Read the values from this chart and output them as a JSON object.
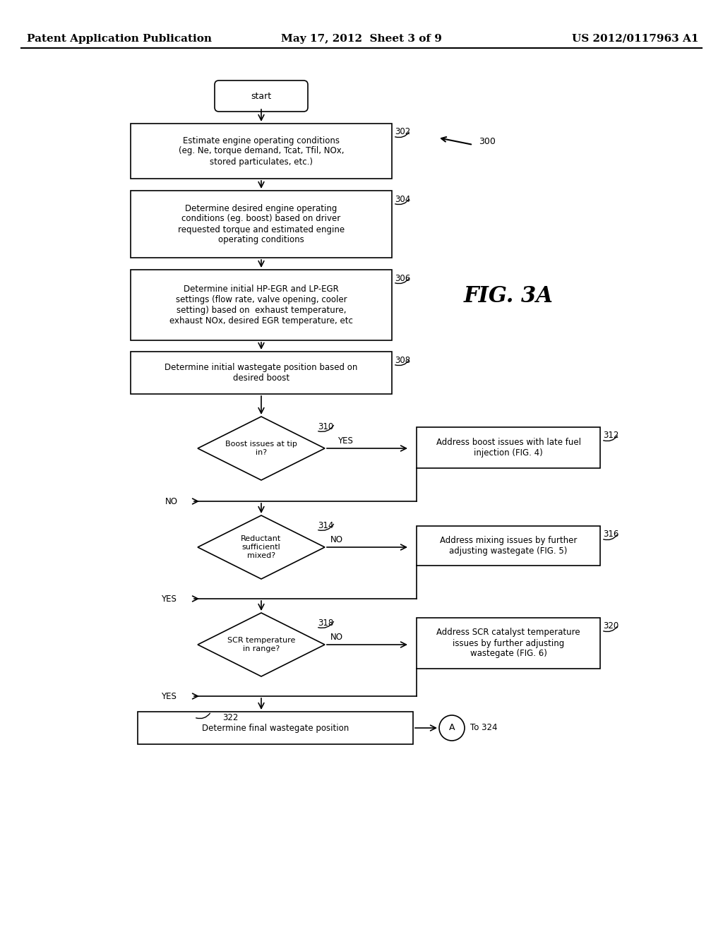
{
  "header_left": "Patent Application Publication",
  "header_mid": "May 17, 2012  Sheet 3 of 9",
  "header_right": "US 2012/0117963 A1",
  "fig_label": "FIG. 3A",
  "background_color": "#ffffff",
  "line_color": "#000000",
  "text_fontsize": 8.5,
  "label_fontsize": 8.5,
  "header_fontsize": 11,
  "fig_fontsize": 22
}
